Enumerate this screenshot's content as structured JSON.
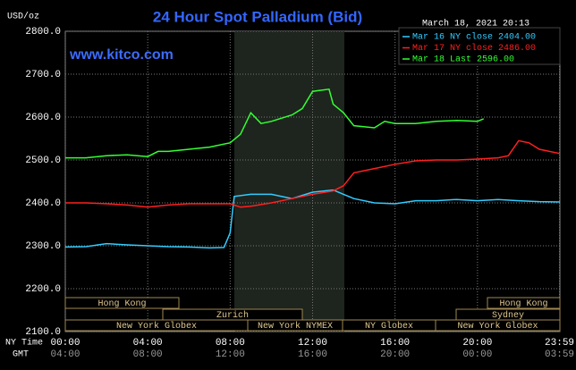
{
  "chart_data": {
    "type": "line",
    "title": "24 Hour Spot Palladium (Bid)",
    "y_label": "USD/oz",
    "timestamp": "March 18, 2021 20:13",
    "watermark": "www.kitco.com",
    "x_label": "NY Time",
    "x2_label": "GMT",
    "xlim": [
      0,
      24
    ],
    "ylim": [
      2100,
      2800
    ],
    "yticks": [
      {
        "value": 2100,
        "label": "2100.0"
      },
      {
        "value": 2200,
        "label": "2200.0"
      },
      {
        "value": 2300,
        "label": "2300.0"
      },
      {
        "value": 2400,
        "label": "2400.0"
      },
      {
        "value": 2500,
        "label": "2500.0"
      },
      {
        "value": 2600,
        "label": "2600.0"
      },
      {
        "value": 2700,
        "label": "2700.0"
      },
      {
        "value": 2800,
        "label": "2800.0"
      }
    ],
    "xticks": [
      {
        "value": 0,
        "label": "00:00"
      },
      {
        "value": 4,
        "label": "04:00"
      },
      {
        "value": 8,
        "label": "08:00"
      },
      {
        "value": 12,
        "label": "12:00"
      },
      {
        "value": 16,
        "label": "16:00"
      },
      {
        "value": 20,
        "label": "20:00"
      },
      {
        "value": 23.98,
        "label": "23:59"
      }
    ],
    "x2ticks": [
      {
        "value": 0,
        "label": "04:00"
      },
      {
        "value": 4,
        "label": "08:00"
      },
      {
        "value": 8,
        "label": "12:00"
      },
      {
        "value": 12,
        "label": "16:00"
      },
      {
        "value": 16,
        "label": "20:00"
      },
      {
        "value": 20,
        "label": "00:00"
      },
      {
        "value": 23.98,
        "label": "03:59"
      }
    ],
    "grid": true,
    "sessions": [
      "Hong Kong",
      "Zurich",
      "New York Globex",
      "New York NYMEX",
      "NY Globex",
      "Hong Kong",
      "Sydney",
      "New York Globex"
    ],
    "series": [
      {
        "name": "Mar 16 NY close 2404.00",
        "color": "#33ccff",
        "x": [
          0,
          1,
          2,
          3,
          4,
          5,
          6,
          7,
          7.7,
          8,
          8.2,
          9,
          10,
          11,
          12,
          13,
          14,
          15,
          16,
          17,
          18,
          19,
          20,
          21,
          22,
          23,
          24
        ],
        "values": [
          2297,
          2298,
          2305,
          2302,
          2300,
          2298,
          2297,
          2295,
          2296,
          2330,
          2415,
          2420,
          2420,
          2410,
          2425,
          2430,
          2410,
          2400,
          2398,
          2405,
          2405,
          2408,
          2405,
          2408,
          2405,
          2403,
          2402
        ]
      },
      {
        "name": "Mar 17 NY close 2486.00",
        "color": "#ff2020",
        "x": [
          0,
          1,
          2,
          3,
          4,
          5,
          6,
          7,
          8,
          8.5,
          9,
          10,
          11,
          12,
          13,
          13.5,
          14,
          15,
          16,
          17,
          18,
          19,
          20,
          21,
          21.5,
          22,
          22.5,
          23,
          24
        ],
        "values": [
          2400,
          2400,
          2398,
          2395,
          2390,
          2395,
          2398,
          2398,
          2398,
          2390,
          2392,
          2400,
          2410,
          2420,
          2428,
          2440,
          2470,
          2480,
          2490,
          2498,
          2500,
          2500,
          2502,
          2505,
          2510,
          2545,
          2540,
          2525,
          2515
        ]
      },
      {
        "name": "Mar 18 Last 2596.00",
        "color": "#33ff33",
        "x": [
          0,
          1,
          2,
          3,
          4,
          4.5,
          5,
          6,
          7,
          8,
          8.5,
          9,
          9.5,
          10,
          11,
          11.5,
          12,
          12.8,
          13,
          13.5,
          14,
          15,
          15.5,
          16,
          17,
          18,
          19,
          20,
          20.3
        ],
        "values": [
          2505,
          2505,
          2510,
          2512,
          2508,
          2520,
          2520,
          2525,
          2530,
          2540,
          2560,
          2610,
          2585,
          2590,
          2605,
          2620,
          2660,
          2665,
          2630,
          2610,
          2580,
          2575,
          2590,
          2585,
          2585,
          2590,
          2592,
          2590,
          2596
        ]
      }
    ]
  }
}
